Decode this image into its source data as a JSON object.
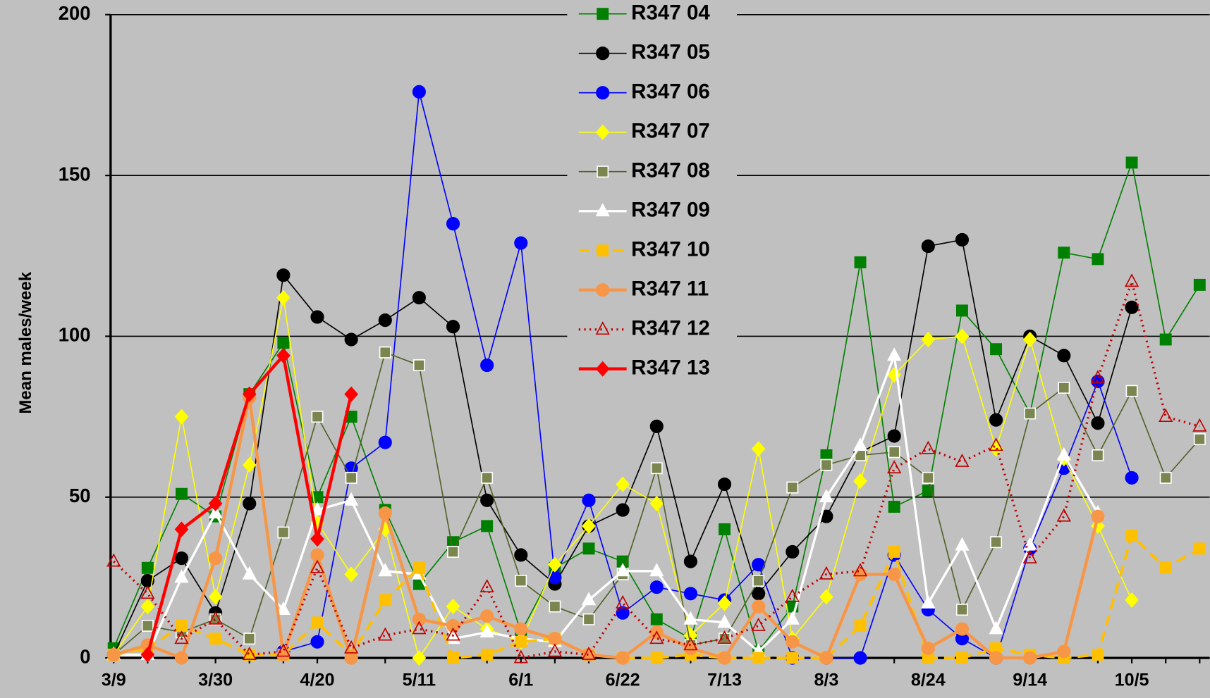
{
  "chart_data": {
    "type": "line",
    "ylabel": "Mean males/week",
    "categories": [
      "3/9",
      null,
      null,
      "3/30",
      null,
      null,
      "4/20",
      null,
      null,
      "5/11",
      null,
      null,
      "6/1",
      null,
      null,
      "6/22",
      null,
      null,
      "7/13",
      null,
      null,
      "8/3",
      null,
      null,
      "8/24",
      null,
      null,
      "9/14",
      null,
      null,
      "10/5",
      null,
      null
    ],
    "ylim": [
      0,
      200
    ],
    "yticks": [
      0,
      50,
      100,
      150,
      200
    ],
    "grid": true,
    "legend": "top",
    "series": [
      {
        "name": "R347 04",
        "color": "#008000",
        "marker": "square",
        "fill": "#008000",
        "width": 1.5,
        "dash": "none",
        "values": [
          3,
          28,
          51,
          44,
          82,
          98,
          50,
          75,
          46,
          23,
          36,
          41,
          8,
          28,
          34,
          30,
          12,
          6,
          40,
          2,
          16,
          63,
          123,
          47,
          52,
          108,
          96,
          76,
          126,
          124,
          154,
          99,
          116
        ]
      },
      {
        "name": "R347 05",
        "color": "#000000",
        "marker": "circle",
        "fill": "#000000",
        "width": 1.5,
        "dash": "none",
        "values": [
          1,
          24,
          31,
          14,
          48,
          119,
          106,
          99,
          105,
          112,
          103,
          49,
          32,
          23,
          41,
          46,
          72,
          30,
          54,
          20,
          33,
          44,
          64,
          69,
          128,
          130,
          74,
          100,
          94,
          73,
          109,
          null,
          null
        ]
      },
      {
        "name": "R347 06",
        "color": "#0000ff",
        "marker": "circle",
        "fill": "#0000ff",
        "width": 1.5,
        "dash": "none",
        "values": [
          null,
          null,
          null,
          null,
          null,
          2,
          5,
          59,
          67,
          176,
          135,
          91,
          129,
          25,
          49,
          14,
          22,
          20,
          18,
          29,
          0,
          0,
          0,
          32,
          15,
          6,
          0,
          34,
          59,
          86,
          56,
          null,
          null
        ]
      },
      {
        "name": "R347 07",
        "color": "#ffff00",
        "marker": "diamond",
        "fill": "#ffff00",
        "width": 1.5,
        "dash": "none",
        "values": [
          1,
          16,
          75,
          19,
          60,
          112,
          42,
          26,
          40,
          0,
          16,
          9,
          5,
          29,
          41,
          54,
          48,
          7,
          17,
          65,
          6,
          19,
          55,
          88,
          99,
          100,
          65,
          99,
          62,
          41,
          18,
          null,
          null
        ]
      },
      {
        "name": "R347 08",
        "color": "#4f6228",
        "marker": "square",
        "fill": "#7a8550",
        "width": 1.5,
        "dash": "none",
        "values": [
          1,
          10,
          8,
          12,
          6,
          39,
          75,
          56,
          95,
          91,
          33,
          56,
          24,
          16,
          12,
          26,
          59,
          4,
          6,
          24,
          53,
          60,
          63,
          64,
          56,
          15,
          36,
          76,
          84,
          63,
          83,
          56,
          68
        ]
      },
      {
        "name": "R347 09",
        "color": "#ffffff",
        "marker": "triangle",
        "fill": "#ffffff",
        "width": 3,
        "dash": "none",
        "values": [
          1,
          1,
          25,
          45,
          26,
          15,
          46,
          49,
          27,
          26,
          6,
          8,
          6,
          5,
          18,
          27,
          27,
          12,
          11,
          2,
          12,
          50,
          66,
          94,
          17,
          35,
          9,
          35,
          63,
          45,
          null,
          null,
          null
        ]
      },
      {
        "name": "R347 10",
        "color": "#ffc000",
        "marker": "square",
        "fill": "#ffc000",
        "width": 3.5,
        "dash": "14 8",
        "values": [
          1,
          3,
          10,
          6,
          1,
          1,
          11,
          1,
          18,
          28,
          0,
          1,
          5,
          6,
          1,
          0,
          0,
          1,
          0,
          0,
          0,
          0,
          10,
          33,
          0,
          0,
          3,
          1,
          0,
          1,
          38,
          28,
          34
        ]
      },
      {
        "name": "R347 11",
        "color": "#f79646",
        "marker": "circle",
        "fill": "#f79646",
        "width": 4,
        "dash": "none",
        "values": [
          1,
          4,
          0,
          31,
          81,
          1,
          32,
          0,
          45,
          12,
          10,
          13,
          9,
          6,
          1,
          0,
          8,
          3,
          0,
          16,
          5,
          0,
          26,
          26,
          3,
          9,
          0,
          0,
          2,
          44,
          null,
          null,
          null
        ]
      },
      {
        "name": "R347 12",
        "color": "#c00000",
        "marker": "triangle",
        "fill": "none",
        "width": 3,
        "dash": "2 5",
        "values": [
          30,
          20,
          6,
          12,
          1,
          2,
          28,
          3,
          7,
          9,
          7,
          22,
          0,
          2,
          1,
          17,
          6,
          4,
          6,
          10,
          19,
          26,
          27,
          59,
          65,
          61,
          66,
          31,
          44,
          87,
          117,
          75,
          72
        ]
      },
      {
        "name": "R347 13",
        "color": "#ff0000",
        "marker": "diamond",
        "fill": "#ff0000",
        "width": 4,
        "dash": "none",
        "values": [
          null,
          1,
          40,
          48,
          82,
          94,
          37,
          82,
          null,
          null,
          null,
          null,
          null,
          null,
          null,
          null,
          null,
          null,
          null,
          null,
          null,
          null,
          null,
          null,
          null,
          null,
          null,
          null,
          null,
          null,
          null,
          null,
          null
        ]
      }
    ]
  }
}
